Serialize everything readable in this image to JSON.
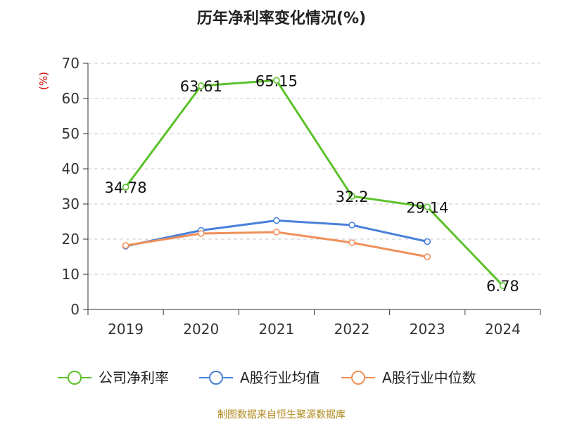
{
  "title": "历年净利率变化情况(%)",
  "y_unit": "(%)",
  "source": "制图数据来自恒生聚源数据库",
  "colors": {
    "net_margin": "#5cc12a",
    "industry_avg": "#4a80d9",
    "industry_median": "#f0905a",
    "grid": "#c8c8c8",
    "axis": "#333333",
    "unit": "#d40000",
    "source": "#b08a1e"
  },
  "chart_data": {
    "type": "line",
    "title": "历年净利率变化情况(%)",
    "ylabel": "(%)",
    "ylim": [
      0,
      70
    ],
    "yticks": [
      0,
      10,
      20,
      30,
      40,
      50,
      60,
      70
    ],
    "categories": [
      "2019",
      "2020",
      "2021",
      "2022",
      "2023",
      "2024"
    ],
    "grid": true,
    "legend_position": "bottom",
    "series": [
      {
        "name": "公司净利率",
        "color": "#5cc12a",
        "values": [
          34.78,
          63.61,
          65.15,
          32.2,
          29.14,
          6.78
        ],
        "labels": [
          "34.78",
          "63.61",
          "65.15",
          "32.2",
          "29.14",
          "6.78"
        ]
      },
      {
        "name": "A股行业均值",
        "color": "#4a80d9",
        "values": [
          18.0,
          22.5,
          25.3,
          24.0,
          19.3,
          null
        ]
      },
      {
        "name": "A股行业中位数",
        "color": "#f0905a",
        "values": [
          18.2,
          21.6,
          22.0,
          19.0,
          15.0,
          null
        ]
      }
    ]
  }
}
